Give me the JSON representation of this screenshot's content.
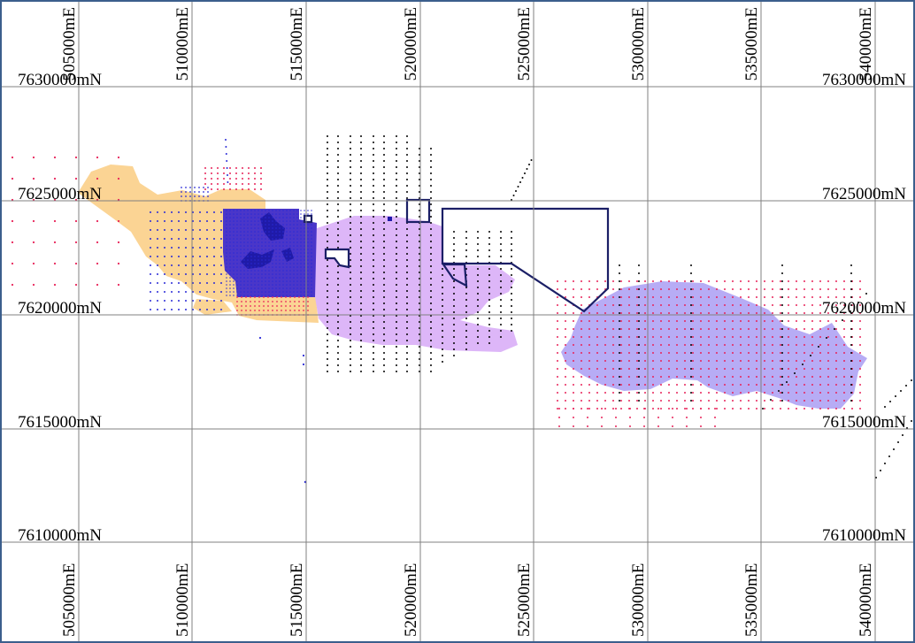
{
  "map": {
    "easting_labels": [
      "505000mE",
      "510000mE",
      "515000mE",
      "520000mE",
      "525000mE",
      "530000mE",
      "535000mE",
      "540000mE"
    ],
    "northing_labels": [
      "7630000mN",
      "7625000mN",
      "7620000mN",
      "7615000mN",
      "7610000mN"
    ],
    "colors": {
      "background": "#ffffff",
      "border": "#3b5e8c",
      "grid": "#808080",
      "orange_zone": "#fbd494",
      "purple_zone": "#ddb6f8",
      "lavender_zone": "#b7acf5",
      "dense_blue_zone": "#4a36c9",
      "dark_blue_feature": "#1f1aa8",
      "tenement_outline": "#1b1f66",
      "drill_black": "#000000",
      "drill_red": "#e8245a",
      "drill_blue": "#2a2ad6"
    }
  }
}
